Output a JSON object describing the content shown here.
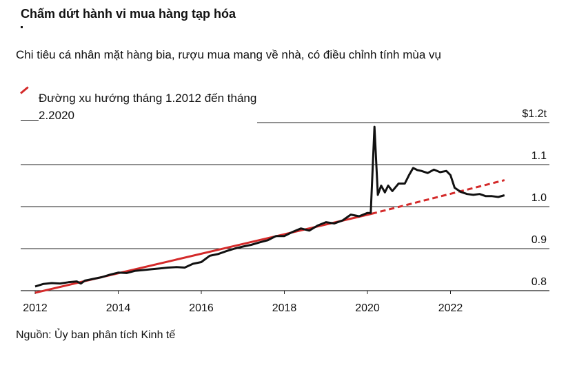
{
  "chart_data": {
    "type": "line",
    "title": "Chấm dứt hành vi mua hàng tạp hóa",
    "subtitle": "Chi tiêu cá nhân mặt hàng bia, rượu mua mang về nhà, có điều chỉnh tính mùa vụ",
    "source": "Nguồn: Ủy ban phân tích Kinh tế",
    "legend": {
      "label": "Đường xu hướng tháng 1.2012 đến tháng 2.2020",
      "placement": "top-left"
    },
    "x_ticks": [
      "2012",
      "2014",
      "2016",
      "2018",
      "2020",
      "2022"
    ],
    "y_ticks": [
      "0.8",
      "0.9",
      "1.0",
      "1.1",
      "$1.2t"
    ],
    "xlim": [
      2011.8,
      2024.3
    ],
    "ylim": [
      0.78,
      1.22
    ],
    "grid": "horizontal",
    "colors": {
      "actual": "#111111",
      "trend": "#d42a2a"
    },
    "series": [
      {
        "name": "actual",
        "x": [
          2012.0,
          2012.2,
          2012.4,
          2012.6,
          2012.8,
          2013.0,
          2013.1,
          2013.2,
          2013.4,
          2013.6,
          2013.8,
          2014.0,
          2014.2,
          2014.4,
          2014.6,
          2014.8,
          2015.0,
          2015.2,
          2015.4,
          2015.6,
          2015.8,
          2016.0,
          2016.2,
          2016.4,
          2016.6,
          2016.8,
          2017.0,
          2017.2,
          2017.4,
          2017.6,
          2017.8,
          2018.0,
          2018.2,
          2018.4,
          2018.6,
          2018.8,
          2019.0,
          2019.2,
          2019.4,
          2019.6,
          2019.8,
          2020.0,
          2020.08,
          2020.17,
          2020.25,
          2020.33,
          2020.42,
          2020.5,
          2020.6,
          2020.75,
          2020.9,
          2021.0,
          2021.1,
          2021.2,
          2021.3,
          2021.45,
          2021.6,
          2021.75,
          2021.9,
          2022.0,
          2022.1,
          2022.25,
          2022.4,
          2022.55,
          2022.7,
          2022.85,
          2023.0,
          2023.15,
          2023.3
        ],
        "values": [
          0.81,
          0.816,
          0.818,
          0.817,
          0.82,
          0.822,
          0.817,
          0.824,
          0.828,
          0.832,
          0.838,
          0.843,
          0.842,
          0.847,
          0.849,
          0.851,
          0.853,
          0.855,
          0.856,
          0.855,
          0.864,
          0.868,
          0.883,
          0.887,
          0.894,
          0.9,
          0.905,
          0.909,
          0.915,
          0.92,
          0.93,
          0.93,
          0.94,
          0.948,
          0.943,
          0.955,
          0.963,
          0.96,
          0.967,
          0.981,
          0.977,
          0.985,
          0.985,
          1.19,
          1.028,
          1.05,
          1.034,
          1.05,
          1.037,
          1.055,
          1.055,
          1.075,
          1.092,
          1.087,
          1.085,
          1.08,
          1.088,
          1.082,
          1.085,
          1.075,
          1.045,
          1.035,
          1.03,
          1.028,
          1.03,
          1.025,
          1.025,
          1.023,
          1.027
        ]
      },
      {
        "name": "trend",
        "x": [
          2012.0,
          2020.1
        ],
        "values": [
          0.795,
          0.983
        ],
        "extension": {
          "x": [
            2020.1,
            2023.3
          ],
          "values": [
            0.983,
            1.063
          ],
          "style": "dashed"
        }
      }
    ]
  }
}
